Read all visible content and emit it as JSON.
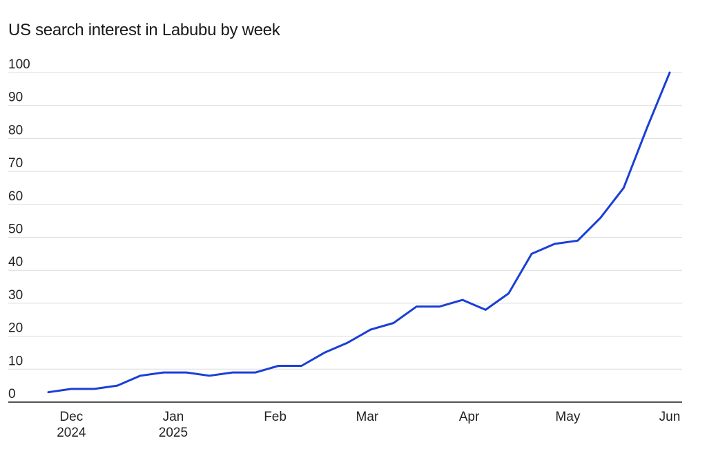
{
  "chart_data": {
    "type": "line",
    "title": "US search interest in Labubu by week",
    "xlabel": "",
    "ylabel": "",
    "ylim": [
      0,
      100
    ],
    "yticks": [
      0,
      10,
      20,
      30,
      40,
      50,
      60,
      70,
      80,
      90,
      100
    ],
    "grid": true,
    "xtick_labels": [
      {
        "date": "2024-12-01",
        "lines": [
          "Dec",
          "2024"
        ]
      },
      {
        "date": "2025-01-01",
        "lines": [
          "Jan",
          "2025"
        ]
      },
      {
        "date": "2025-02-01",
        "lines": [
          "Feb"
        ]
      },
      {
        "date": "2025-03-01",
        "lines": [
          "Mar"
        ]
      },
      {
        "date": "2025-04-01",
        "lines": [
          "Apr"
        ]
      },
      {
        "date": "2025-05-01",
        "lines": [
          "May"
        ]
      },
      {
        "date": "2025-06-01",
        "lines": [
          "Jun"
        ]
      }
    ],
    "series": [
      {
        "color": "#1a3fd6",
        "points": [
          {
            "x": "2024-11-24",
            "y": 3
          },
          {
            "x": "2024-12-01",
            "y": 4
          },
          {
            "x": "2024-12-08",
            "y": 4
          },
          {
            "x": "2024-12-15",
            "y": 5
          },
          {
            "x": "2024-12-22",
            "y": 8
          },
          {
            "x": "2024-12-29",
            "y": 9
          },
          {
            "x": "2025-01-05",
            "y": 9
          },
          {
            "x": "2025-01-12",
            "y": 8
          },
          {
            "x": "2025-01-19",
            "y": 9
          },
          {
            "x": "2025-01-26",
            "y": 9
          },
          {
            "x": "2025-02-02",
            "y": 11
          },
          {
            "x": "2025-02-09",
            "y": 11
          },
          {
            "x": "2025-02-16",
            "y": 15
          },
          {
            "x": "2025-02-23",
            "y": 18
          },
          {
            "x": "2025-03-02",
            "y": 22
          },
          {
            "x": "2025-03-09",
            "y": 24
          },
          {
            "x": "2025-03-16",
            "y": 29
          },
          {
            "x": "2025-03-23",
            "y": 29
          },
          {
            "x": "2025-03-30",
            "y": 31
          },
          {
            "x": "2025-04-06",
            "y": 28
          },
          {
            "x": "2025-04-13",
            "y": 33
          },
          {
            "x": "2025-04-20",
            "y": 45
          },
          {
            "x": "2025-04-27",
            "y": 48
          },
          {
            "x": "2025-05-04",
            "y": 49
          },
          {
            "x": "2025-05-11",
            "y": 56
          },
          {
            "x": "2025-05-18",
            "y": 65
          },
          {
            "x": "2025-05-25",
            "y": 83
          },
          {
            "x": "2025-06-01",
            "y": 100
          }
        ]
      }
    ]
  }
}
